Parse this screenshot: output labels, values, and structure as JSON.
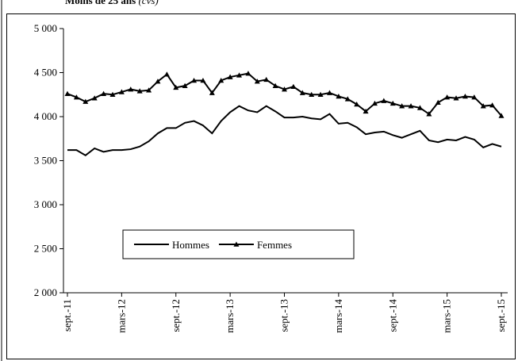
{
  "chart_data": {
    "type": "line",
    "title": "Moins de 25 ans",
    "subtitle": "(cvs)",
    "categories": [
      "sept.-11",
      null,
      null,
      null,
      null,
      null,
      "mars-12",
      null,
      null,
      null,
      null,
      null,
      "sept.-12",
      null,
      null,
      null,
      null,
      null,
      "mars-13",
      null,
      null,
      null,
      null,
      null,
      "sept.-13",
      null,
      null,
      null,
      null,
      null,
      "mars-14",
      null,
      null,
      null,
      null,
      null,
      "sept.-14",
      null,
      null,
      null,
      null,
      null,
      "mars-15",
      null,
      null,
      null,
      null,
      null,
      "sept.-15"
    ],
    "series": [
      {
        "name": "Hommes",
        "color": "#000000",
        "marker": "none",
        "values": [
          3620,
          3620,
          3560,
          3640,
          3600,
          3620,
          3620,
          3630,
          3660,
          3720,
          3810,
          3870,
          3870,
          3930,
          3950,
          3900,
          3810,
          3950,
          4050,
          4120,
          4070,
          4050,
          4120,
          4060,
          3990,
          3990,
          4000,
          3980,
          3970,
          4030,
          3920,
          3930,
          3880,
          3800,
          3820,
          3830,
          3790,
          3760,
          3800,
          3840,
          3730,
          3710,
          3740,
          3730,
          3770,
          3740,
          3650,
          3690,
          3660
        ]
      },
      {
        "name": "Femmes",
        "color": "#000000",
        "marker": "triangle",
        "values": [
          4260,
          4220,
          4170,
          4210,
          4260,
          4250,
          4280,
          4310,
          4290,
          4300,
          4400,
          4480,
          4330,
          4350,
          4410,
          4410,
          4270,
          4410,
          4450,
          4470,
          4490,
          4400,
          4420,
          4350,
          4310,
          4340,
          4270,
          4250,
          4250,
          4270,
          4230,
          4200,
          4140,
          4060,
          4150,
          4180,
          4150,
          4120,
          4120,
          4100,
          4030,
          4160,
          4220,
          4210,
          4230,
          4220,
          4120,
          4130,
          4010
        ]
      }
    ],
    "ylim": [
      2000,
      5000
    ],
    "yticks": [
      {
        "value": 2000,
        "label": "2 000"
      },
      {
        "value": 2500,
        "label": "2 500"
      },
      {
        "value": 3000,
        "label": "3 000"
      },
      {
        "value": 3500,
        "label": "3 500"
      },
      {
        "value": 4000,
        "label": "4 000"
      },
      {
        "value": 4500,
        "label": "4 500"
      },
      {
        "value": 5000,
        "label": "5 000"
      }
    ],
    "grid": false,
    "legend": "lower-left"
  }
}
